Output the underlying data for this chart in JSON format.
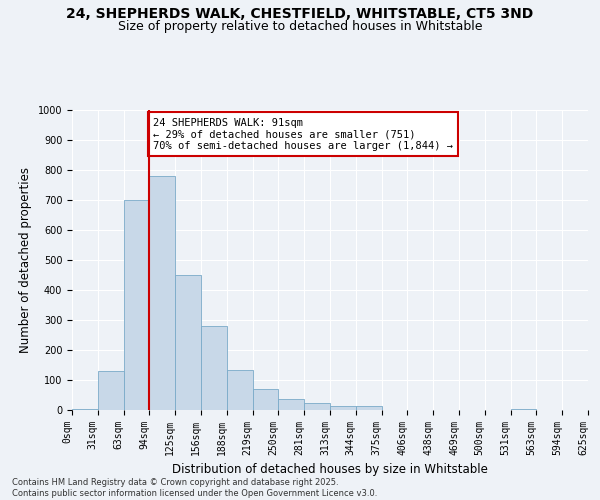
{
  "title_line1": "24, SHEPHERDS WALK, CHESTFIELD, WHITSTABLE, CT5 3ND",
  "title_line2": "Size of property relative to detached houses in Whitstable",
  "xlabel": "Distribution of detached houses by size in Whitstable",
  "ylabel": "Number of detached properties",
  "bar_values": [
    5,
    130,
    700,
    780,
    450,
    280,
    135,
    70,
    37,
    25,
    12,
    12,
    0,
    0,
    0,
    0,
    0,
    5,
    0,
    0
  ],
  "bin_labels": [
    "0sqm",
    "31sqm",
    "63sqm",
    "94sqm",
    "125sqm",
    "156sqm",
    "188sqm",
    "219sqm",
    "250sqm",
    "281sqm",
    "313sqm",
    "344sqm",
    "375sqm",
    "406sqm",
    "438sqm",
    "469sqm",
    "500sqm",
    "531sqm",
    "563sqm",
    "594sqm",
    "625sqm"
  ],
  "bar_color": "#c8d8e8",
  "bar_edge_color": "#7aaac8",
  "bg_color": "#eef2f7",
  "grid_color": "#ffffff",
  "vline_x": 3,
  "vline_color": "#cc0000",
  "annotation_text": "24 SHEPHERDS WALK: 91sqm\n← 29% of detached houses are smaller (751)\n70% of semi-detached houses are larger (1,844) →",
  "annotation_box_color": "#ffffff",
  "annotation_box_edge": "#cc0000",
  "ylim": [
    0,
    1000
  ],
  "yticks": [
    0,
    100,
    200,
    300,
    400,
    500,
    600,
    700,
    800,
    900,
    1000
  ],
  "footer_text": "Contains HM Land Registry data © Crown copyright and database right 2025.\nContains public sector information licensed under the Open Government Licence v3.0.",
  "title_fontsize": 10,
  "subtitle_fontsize": 9,
  "axis_label_fontsize": 8.5,
  "tick_fontsize": 7,
  "annotation_fontsize": 7.5,
  "footer_fontsize": 6
}
